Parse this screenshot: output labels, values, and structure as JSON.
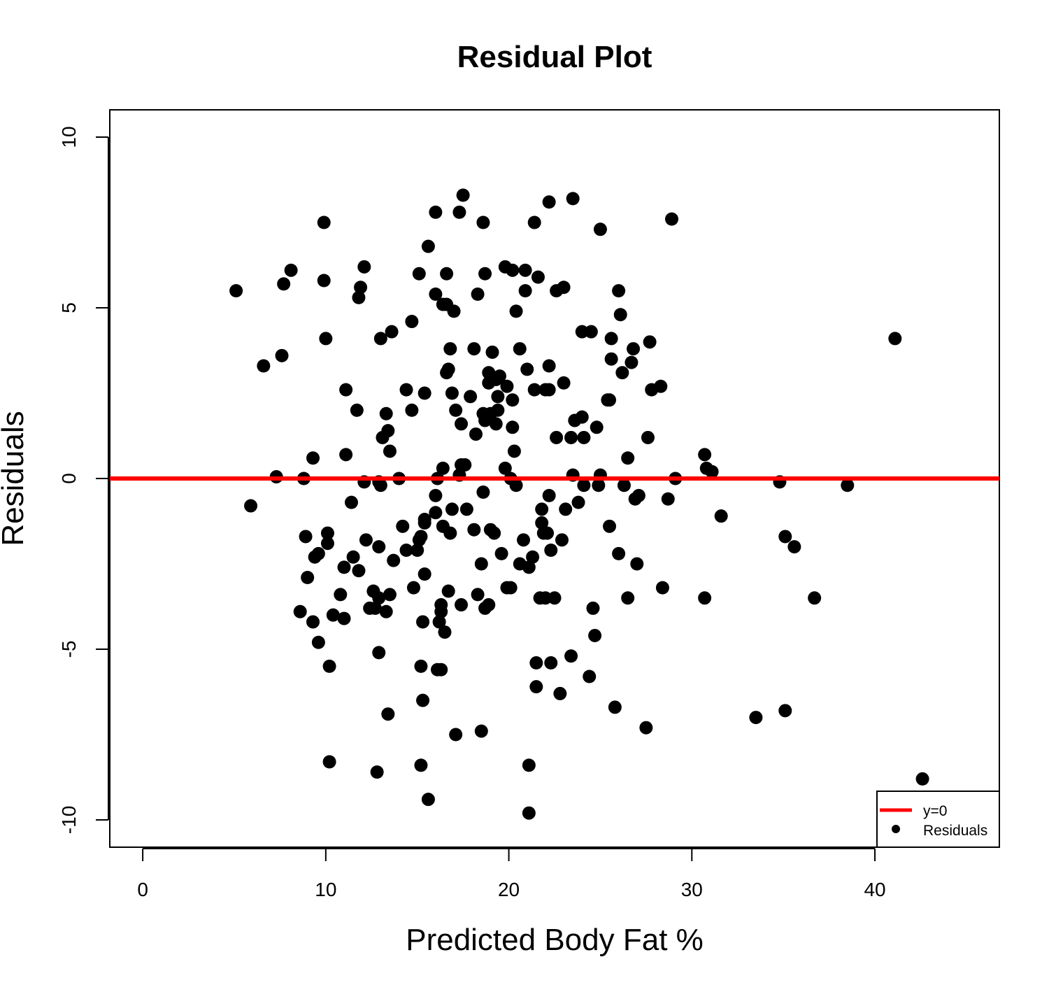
{
  "chart_data": {
    "type": "scatter",
    "title": "Residual Plot",
    "xlabel": "Predicted Body Fat %",
    "ylabel": "Residuals",
    "xlim": [
      -1.8,
      46.8
    ],
    "ylim": [
      -10.8,
      10.8
    ],
    "x_ticks": [
      0,
      10,
      20,
      30,
      40
    ],
    "y_ticks": [
      -10,
      -5,
      0,
      5,
      10
    ],
    "x_tick_labels": [
      "0",
      "10",
      "20",
      "30",
      "40"
    ],
    "y_tick_labels": [
      "-10",
      "-5",
      "0",
      "5",
      "10"
    ],
    "grid": false,
    "legend_position": "bottom-right",
    "reference_line": {
      "y": 0,
      "color": "#ff0000",
      "label": "y=0"
    },
    "series": [
      {
        "name": "Residuals",
        "color": "#000000",
        "points": [
          [
            5.1,
            5.5
          ],
          [
            5.9,
            -0.8
          ],
          [
            6.6,
            3.3
          ],
          [
            7.3,
            0.05
          ],
          [
            7.6,
            3.6
          ],
          [
            7.7,
            5.7
          ],
          [
            8.1,
            6.1
          ],
          [
            8.6,
            -3.9
          ],
          [
            8.8,
            0.0
          ],
          [
            8.9,
            -1.7
          ],
          [
            9.0,
            -2.9
          ],
          [
            9.3,
            0.6
          ],
          [
            9.3,
            -4.2
          ],
          [
            9.4,
            -2.3
          ],
          [
            9.6,
            -2.2
          ],
          [
            9.6,
            -4.8
          ],
          [
            9.9,
            7.5
          ],
          [
            9.9,
            5.8
          ],
          [
            10.0,
            4.1
          ],
          [
            10.1,
            -1.6
          ],
          [
            10.1,
            -1.9
          ],
          [
            10.2,
            -5.5
          ],
          [
            10.2,
            -8.3
          ],
          [
            10.4,
            -4.0
          ],
          [
            10.8,
            -3.4
          ],
          [
            11.0,
            -4.1
          ],
          [
            11.0,
            -2.6
          ],
          [
            11.1,
            2.6
          ],
          [
            11.1,
            0.7
          ],
          [
            11.4,
            -0.7
          ],
          [
            11.5,
            -2.3
          ],
          [
            11.7,
            2.0
          ],
          [
            11.8,
            -2.7
          ],
          [
            11.8,
            5.3
          ],
          [
            11.9,
            5.6
          ],
          [
            12.1,
            6.2
          ],
          [
            12.1,
            -0.1
          ],
          [
            12.2,
            -1.8
          ],
          [
            12.4,
            -3.8
          ],
          [
            12.6,
            -3.3
          ],
          [
            12.7,
            -3.8
          ],
          [
            12.8,
            -8.6
          ],
          [
            12.9,
            -3.5
          ],
          [
            12.9,
            -0.1
          ],
          [
            12.9,
            -2.0
          ],
          [
            12.9,
            -5.1
          ],
          [
            13.0,
            -0.2
          ],
          [
            13.0,
            4.1
          ],
          [
            13.1,
            1.2
          ],
          [
            13.3,
            1.9
          ],
          [
            13.3,
            -3.9
          ],
          [
            13.4,
            -6.9
          ],
          [
            13.4,
            1.4
          ],
          [
            13.5,
            0.8
          ],
          [
            13.5,
            -3.4
          ],
          [
            13.6,
            4.3
          ],
          [
            13.7,
            -2.4
          ],
          [
            14.0,
            0.0
          ],
          [
            14.2,
            -1.4
          ],
          [
            14.4,
            2.6
          ],
          [
            14.4,
            -2.1
          ],
          [
            14.7,
            2.0
          ],
          [
            14.7,
            4.6
          ],
          [
            14.8,
            -3.2
          ],
          [
            15.0,
            -2.1
          ],
          [
            15.1,
            -1.8
          ],
          [
            15.1,
            6.0
          ],
          [
            15.2,
            -5.5
          ],
          [
            15.2,
            -8.4
          ],
          [
            15.2,
            -1.7
          ],
          [
            15.3,
            -6.5
          ],
          [
            15.3,
            -4.2
          ],
          [
            15.4,
            -1.2
          ],
          [
            15.4,
            -1.3
          ],
          [
            15.4,
            -2.8
          ],
          [
            15.4,
            2.5
          ],
          [
            15.6,
            6.8
          ],
          [
            15.6,
            -9.4
          ],
          [
            16.0,
            7.8
          ],
          [
            16.0,
            5.4
          ],
          [
            16.0,
            -0.5
          ],
          [
            16.0,
            -1.0
          ],
          [
            16.1,
            0.0
          ],
          [
            16.1,
            -5.6
          ],
          [
            16.2,
            -4.2
          ],
          [
            16.3,
            -5.6
          ],
          [
            16.3,
            -3.7
          ],
          [
            16.3,
            -3.9
          ],
          [
            16.4,
            5.1
          ],
          [
            16.4,
            0.3
          ],
          [
            16.4,
            -1.4
          ],
          [
            16.5,
            -4.5
          ],
          [
            16.6,
            6.0
          ],
          [
            16.6,
            5.1
          ],
          [
            16.6,
            3.1
          ],
          [
            16.7,
            -3.3
          ],
          [
            16.7,
            3.2
          ],
          [
            16.8,
            3.8
          ],
          [
            16.8,
            -1.6
          ],
          [
            16.9,
            2.5
          ],
          [
            16.9,
            -0.9
          ],
          [
            17.0,
            4.9
          ],
          [
            17.1,
            2.0
          ],
          [
            17.1,
            -7.5
          ],
          [
            17.3,
            0.1
          ],
          [
            17.3,
            7.8
          ],
          [
            17.4,
            0.4
          ],
          [
            17.4,
            1.6
          ],
          [
            17.4,
            -3.7
          ],
          [
            17.5,
            8.3
          ],
          [
            17.6,
            0.4
          ],
          [
            17.7,
            -0.9
          ],
          [
            17.9,
            2.4
          ],
          [
            18.1,
            3.8
          ],
          [
            18.1,
            -1.5
          ],
          [
            18.2,
            1.3
          ],
          [
            18.3,
            -3.4
          ],
          [
            18.3,
            5.4
          ],
          [
            18.5,
            -2.5
          ],
          [
            18.5,
            -7.4
          ],
          [
            18.6,
            7.5
          ],
          [
            18.6,
            -0.4
          ],
          [
            18.6,
            1.9
          ],
          [
            18.7,
            6.0
          ],
          [
            18.7,
            1.7
          ],
          [
            18.7,
            -3.8
          ],
          [
            18.9,
            -3.7
          ],
          [
            18.9,
            3.1
          ],
          [
            18.9,
            2.8
          ],
          [
            19.0,
            1.9
          ],
          [
            19.0,
            -1.5
          ],
          [
            19.1,
            3.7
          ],
          [
            19.2,
            -1.6
          ],
          [
            19.3,
            2.9
          ],
          [
            19.3,
            1.6
          ],
          [
            19.4,
            2.4
          ],
          [
            19.4,
            2.0
          ],
          [
            19.5,
            3.0
          ],
          [
            19.6,
            -2.2
          ],
          [
            19.8,
            6.2
          ],
          [
            19.8,
            0.3
          ],
          [
            19.9,
            2.7
          ],
          [
            19.9,
            -3.2
          ],
          [
            20.1,
            0.0
          ],
          [
            20.1,
            -3.2
          ],
          [
            20.2,
            6.1
          ],
          [
            20.2,
            2.3
          ],
          [
            20.2,
            1.5
          ],
          [
            20.3,
            0.8
          ],
          [
            20.4,
            -0.2
          ],
          [
            20.4,
            4.9
          ],
          [
            20.6,
            3.8
          ],
          [
            20.6,
            -2.5
          ],
          [
            20.8,
            -1.8
          ],
          [
            20.9,
            6.1
          ],
          [
            20.9,
            5.5
          ],
          [
            21.0,
            3.2
          ],
          [
            21.1,
            -2.6
          ],
          [
            21.1,
            -8.4
          ],
          [
            21.1,
            -9.8
          ],
          [
            21.3,
            -2.3
          ],
          [
            21.4,
            7.5
          ],
          [
            21.4,
            2.6
          ],
          [
            21.5,
            -5.4
          ],
          [
            21.5,
            -6.1
          ],
          [
            21.6,
            5.9
          ],
          [
            21.7,
            -3.5
          ],
          [
            21.8,
            -1.3
          ],
          [
            21.8,
            -0.9
          ],
          [
            21.9,
            -1.6
          ],
          [
            22.0,
            2.6
          ],
          [
            22.0,
            -3.5
          ],
          [
            22.1,
            -1.6
          ],
          [
            22.2,
            8.1
          ],
          [
            22.2,
            3.3
          ],
          [
            22.2,
            2.6
          ],
          [
            22.2,
            -0.5
          ],
          [
            22.3,
            -5.4
          ],
          [
            22.3,
            -2.1
          ],
          [
            22.5,
            -3.5
          ],
          [
            22.6,
            5.5
          ],
          [
            22.6,
            1.2
          ],
          [
            22.8,
            -6.3
          ],
          [
            22.9,
            -1.8
          ],
          [
            23.0,
            5.6
          ],
          [
            23.0,
            2.8
          ],
          [
            23.1,
            -0.9
          ],
          [
            23.4,
            1.2
          ],
          [
            23.4,
            -5.2
          ],
          [
            23.5,
            8.2
          ],
          [
            23.5,
            0.1
          ],
          [
            23.6,
            1.7
          ],
          [
            23.8,
            -0.7
          ],
          [
            24.0,
            1.8
          ],
          [
            24.0,
            4.3
          ],
          [
            24.1,
            1.2
          ],
          [
            24.1,
            -0.2
          ],
          [
            24.4,
            -5.8
          ],
          [
            24.5,
            4.3
          ],
          [
            24.6,
            -3.8
          ],
          [
            24.7,
            -4.6
          ],
          [
            24.8,
            1.5
          ],
          [
            24.9,
            -0.2
          ],
          [
            25.0,
            7.3
          ],
          [
            25.0,
            0.1
          ],
          [
            25.4,
            2.3
          ],
          [
            25.5,
            2.3
          ],
          [
            25.5,
            -1.4
          ],
          [
            25.6,
            4.1
          ],
          [
            25.6,
            3.5
          ],
          [
            25.8,
            -6.7
          ],
          [
            26.0,
            5.5
          ],
          [
            26.0,
            -2.2
          ],
          [
            26.1,
            4.8
          ],
          [
            26.2,
            3.1
          ],
          [
            26.3,
            -0.2
          ],
          [
            26.5,
            0.6
          ],
          [
            26.5,
            -3.5
          ],
          [
            26.7,
            3.4
          ],
          [
            26.8,
            3.8
          ],
          [
            26.9,
            -0.6
          ],
          [
            27.0,
            -2.5
          ],
          [
            27.1,
            -0.5
          ],
          [
            27.5,
            -7.3
          ],
          [
            27.6,
            1.2
          ],
          [
            27.7,
            4.0
          ],
          [
            27.8,
            2.6
          ],
          [
            28.3,
            2.7
          ],
          [
            28.4,
            -3.2
          ],
          [
            28.7,
            -0.6
          ],
          [
            28.9,
            7.6
          ],
          [
            29.1,
            0.0
          ],
          [
            30.7,
            0.7
          ],
          [
            30.7,
            -3.5
          ],
          [
            30.8,
            0.3
          ],
          [
            31.1,
            0.2
          ],
          [
            31.6,
            -1.1
          ],
          [
            33.5,
            -7.0
          ],
          [
            34.8,
            -0.1
          ],
          [
            35.1,
            -1.7
          ],
          [
            35.1,
            -6.8
          ],
          [
            35.6,
            -2.0
          ],
          [
            36.7,
            -3.5
          ],
          [
            38.5,
            -0.2
          ],
          [
            41.1,
            4.1
          ],
          [
            42.6,
            -8.8
          ]
        ]
      }
    ],
    "legend": {
      "entries": [
        {
          "label": "y=0",
          "kind": "line",
          "color": "#ff0000"
        },
        {
          "label": "Residuals",
          "kind": "point",
          "color": "#000000"
        }
      ]
    }
  }
}
